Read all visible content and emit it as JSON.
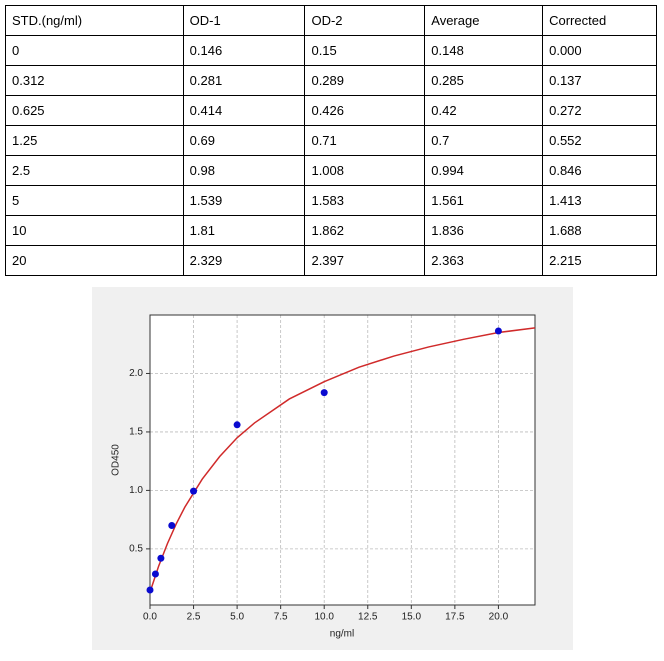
{
  "table": {
    "header": [
      "STD.(ng/ml)",
      "OD-1",
      "OD-2",
      "Average",
      "Corrected"
    ],
    "rows": [
      [
        "0",
        "0.146",
        "0.15",
        "0.148",
        "0.000"
      ],
      [
        "0.312",
        "0.281",
        "0.289",
        "0.285",
        "0.137"
      ],
      [
        "0.625",
        "0.414",
        "0.426",
        "0.42",
        "0.272"
      ],
      [
        "1.25",
        "0.69",
        "0.71",
        "0.7",
        "0.552"
      ],
      [
        "2.5",
        "0.98",
        "1.008",
        "0.994",
        "0.846"
      ],
      [
        "5",
        "1.539",
        "1.583",
        "1.561",
        "1.413"
      ],
      [
        "10",
        "1.81",
        "1.862",
        "1.836",
        "1.688"
      ],
      [
        "20",
        "2.329",
        "2.397",
        "2.363",
        "2.215"
      ]
    ]
  },
  "chart_data": {
    "type": "scatter",
    "x_label": "ng/ml",
    "y_label": "OD450",
    "grid": true,
    "xlim": [
      0,
      22.1
    ],
    "ylim": [
      0.02,
      2.5
    ],
    "xticks": [
      {
        "value": 0,
        "label": "0.0"
      },
      2.5,
      {
        "value": 5,
        "label": "5.0"
      },
      7.5,
      {
        "value": 10,
        "label": "10.0"
      },
      12.5,
      {
        "value": 15,
        "label": "15.0"
      },
      17.5,
      {
        "value": 20,
        "label": "20.0"
      }
    ],
    "yticks": [
      0.5,
      {
        "value": 1,
        "label": "1.0"
      },
      1.5,
      {
        "value": 2,
        "label": "2.0"
      }
    ],
    "series": [
      {
        "mode": "line",
        "color": "#d02a2a",
        "x": [
          0,
          0.5,
          1,
          1.5,
          2,
          3,
          4,
          5,
          6,
          8,
          10,
          12,
          14,
          16,
          18,
          20,
          22.1
        ],
        "values": [
          0.13,
          0.354,
          0.545,
          0.712,
          0.857,
          1.097,
          1.29,
          1.45,
          1.577,
          1.782,
          1.93,
          2.054,
          2.149,
          2.227,
          2.292,
          2.35,
          2.39
        ]
      },
      {
        "mode": "markers",
        "color": "#0a0ad0",
        "x": [
          0,
          0.312,
          0.625,
          1.25,
          2.5,
          5,
          10,
          20
        ],
        "values": [
          0.148,
          0.285,
          0.42,
          0.7,
          0.994,
          1.561,
          1.836,
          2.363
        ]
      }
    ]
  }
}
